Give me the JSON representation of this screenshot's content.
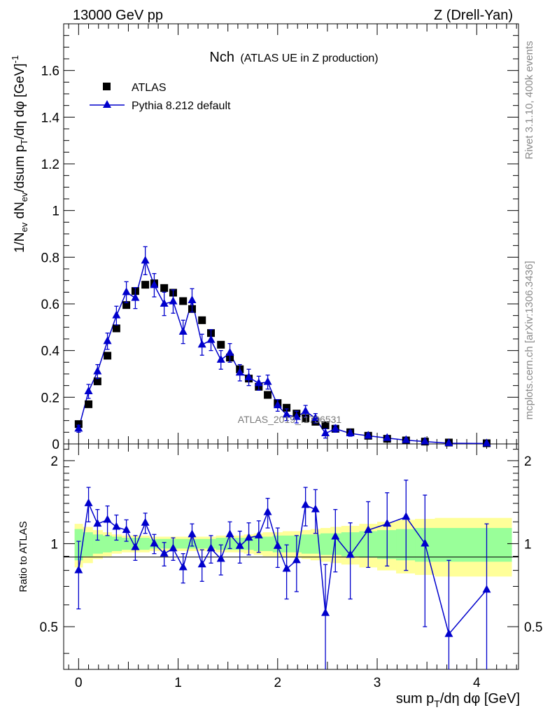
{
  "header": {
    "left": "13000 GeV pp",
    "right": "Z (Drell-Yan)"
  },
  "side": {
    "rivet": "Rivet 3.1.10,  400k events",
    "mcplots": "mcplots.cern.ch [arXiv:1306.3436]"
  },
  "watermark": "ATLAS_2019_I1736531",
  "chart_data": {
    "type": "scatter",
    "title": "Nch",
    "subtitle": "(ATLAS UE in Z production)",
    "xlabel": "sum p_T/dη dφ [GeV]",
    "ylabel": "1/N_ev dN_ev/dsum p_T/dη dφ [GeV]^-1",
    "ratio_ylabel": "Ratio to ATLAS",
    "xlim": [
      -0.15,
      4.42
    ],
    "ylim": [
      0,
      1.8
    ],
    "ratio_ylim": [
      0.35,
      2.3
    ],
    "x_ticks": [
      0,
      1,
      2,
      3,
      4
    ],
    "y_ticks": [
      0,
      0.2,
      0.4,
      0.6,
      0.8,
      1,
      1.2,
      1.4,
      1.6
    ],
    "ratio_ticks": [
      0.5,
      1,
      2
    ],
    "legend": {
      "position": "top-left",
      "entries": [
        "ATLAS",
        "Pythia 8.212 default"
      ]
    },
    "series": [
      {
        "name": "ATLAS",
        "marker": "square",
        "color": "#000000",
        "x": [
          0.0,
          0.1,
          0.19,
          0.29,
          0.38,
          0.48,
          0.57,
          0.67,
          0.76,
          0.86,
          0.95,
          1.05,
          1.14,
          1.24,
          1.33,
          1.43,
          1.52,
          1.62,
          1.71,
          1.81,
          1.9,
          2.0,
          2.09,
          2.19,
          2.28,
          2.38,
          2.48,
          2.58,
          2.73,
          2.91,
          3.1,
          3.29,
          3.48,
          3.72,
          4.1
        ],
        "y": [
          0.085,
          0.17,
          0.268,
          0.378,
          0.495,
          0.595,
          0.655,
          0.682,
          0.688,
          0.668,
          0.648,
          0.612,
          0.578,
          0.53,
          0.475,
          0.425,
          0.37,
          0.32,
          0.28,
          0.245,
          0.21,
          0.175,
          0.155,
          0.13,
          0.11,
          0.095,
          0.08,
          0.065,
          0.05,
          0.035,
          0.022,
          0.015,
          0.01,
          0.006,
          0.003
        ]
      },
      {
        "name": "Pythia 8.212 default",
        "marker": "triangle",
        "color": "#0000cc",
        "x": [
          0.0,
          0.1,
          0.19,
          0.29,
          0.38,
          0.48,
          0.57,
          0.67,
          0.76,
          0.86,
          0.95,
          1.05,
          1.14,
          1.24,
          1.33,
          1.43,
          1.52,
          1.62,
          1.71,
          1.81,
          1.9,
          2.0,
          2.09,
          2.19,
          2.28,
          2.38,
          2.48,
          2.58,
          2.73,
          2.91,
          3.1,
          3.29,
          3.48,
          3.72,
          4.1
        ],
        "y": [
          0.065,
          0.225,
          0.31,
          0.44,
          0.55,
          0.65,
          0.625,
          0.785,
          0.68,
          0.6,
          0.61,
          0.48,
          0.615,
          0.425,
          0.445,
          0.36,
          0.39,
          0.305,
          0.285,
          0.26,
          0.265,
          0.165,
          0.125,
          0.115,
          0.14,
          0.11,
          0.045,
          0.065,
          0.045,
          0.035,
          0.025,
          0.016,
          0.01,
          0.003,
          0.002
        ],
        "yerr": [
          0.015,
          0.03,
          0.03,
          0.035,
          0.04,
          0.045,
          0.045,
          0.06,
          0.05,
          0.05,
          0.05,
          0.05,
          0.05,
          0.045,
          0.045,
          0.04,
          0.04,
          0.035,
          0.035,
          0.03,
          0.03,
          0.025,
          0.025,
          0.025,
          0.025,
          0.02,
          0.02,
          0.015,
          0.012,
          0.01,
          0.008,
          0.006,
          0.005,
          0.004,
          0.003
        ]
      }
    ],
    "ratio": {
      "x": [
        0.0,
        0.1,
        0.19,
        0.29,
        0.38,
        0.48,
        0.57,
        0.67,
        0.76,
        0.86,
        0.95,
        1.05,
        1.14,
        1.24,
        1.33,
        1.43,
        1.52,
        1.62,
        1.71,
        1.81,
        1.9,
        2.0,
        2.09,
        2.19,
        2.28,
        2.38,
        2.48,
        2.58,
        2.73,
        2.91,
        3.1,
        3.29,
        3.48,
        3.72,
        4.1
      ],
      "y": [
        0.8,
        1.4,
        1.18,
        1.22,
        1.15,
        1.12,
        0.97,
        1.19,
        1.0,
        0.92,
        0.96,
        0.82,
        1.08,
        0.84,
        0.96,
        0.88,
        1.08,
        0.98,
        1.05,
        1.07,
        1.3,
        0.98,
        0.81,
        0.87,
        1.38,
        1.33,
        0.56,
        1.06,
        0.91,
        1.12,
        1.18,
        1.25,
        1.0,
        0.47,
        0.68
      ],
      "yerr": [
        0.22,
        0.2,
        0.15,
        0.15,
        0.12,
        0.1,
        0.1,
        0.1,
        0.08,
        0.09,
        0.09,
        0.1,
        0.1,
        0.11,
        0.11,
        0.11,
        0.12,
        0.13,
        0.14,
        0.14,
        0.16,
        0.16,
        0.18,
        0.2,
        0.22,
        0.24,
        0.28,
        0.27,
        0.28,
        0.3,
        0.35,
        0.45,
        0.5,
        0.4,
        0.5
      ],
      "band_edges": [
        -0.04,
        0.04,
        0.14,
        0.24,
        0.33,
        0.43,
        0.52,
        0.62,
        0.71,
        0.81,
        0.9,
        1.0,
        1.09,
        1.19,
        1.28,
        1.38,
        1.47,
        1.57,
        1.66,
        1.76,
        1.85,
        1.95,
        2.05,
        2.14,
        2.24,
        2.33,
        2.43,
        2.53,
        2.64,
        2.82,
        3.0,
        3.19,
        3.38,
        3.58,
        3.86,
        4.35
      ],
      "band_green": [
        0.13,
        0.1,
        0.08,
        0.07,
        0.06,
        0.05,
        0.05,
        0.05,
        0.04,
        0.04,
        0.04,
        0.04,
        0.04,
        0.04,
        0.04,
        0.05,
        0.05,
        0.05,
        0.05,
        0.06,
        0.06,
        0.07,
        0.07,
        0.07,
        0.08,
        0.08,
        0.09,
        0.09,
        0.1,
        0.11,
        0.12,
        0.13,
        0.14,
        0.14,
        0.14
      ],
      "band_yellow": [
        0.18,
        0.15,
        0.12,
        0.1,
        0.08,
        0.07,
        0.07,
        0.07,
        0.06,
        0.06,
        0.06,
        0.06,
        0.06,
        0.06,
        0.06,
        0.07,
        0.07,
        0.07,
        0.08,
        0.09,
        0.1,
        0.1,
        0.11,
        0.11,
        0.12,
        0.13,
        0.14,
        0.15,
        0.16,
        0.18,
        0.2,
        0.22,
        0.23,
        0.24,
        0.24
      ]
    }
  }
}
